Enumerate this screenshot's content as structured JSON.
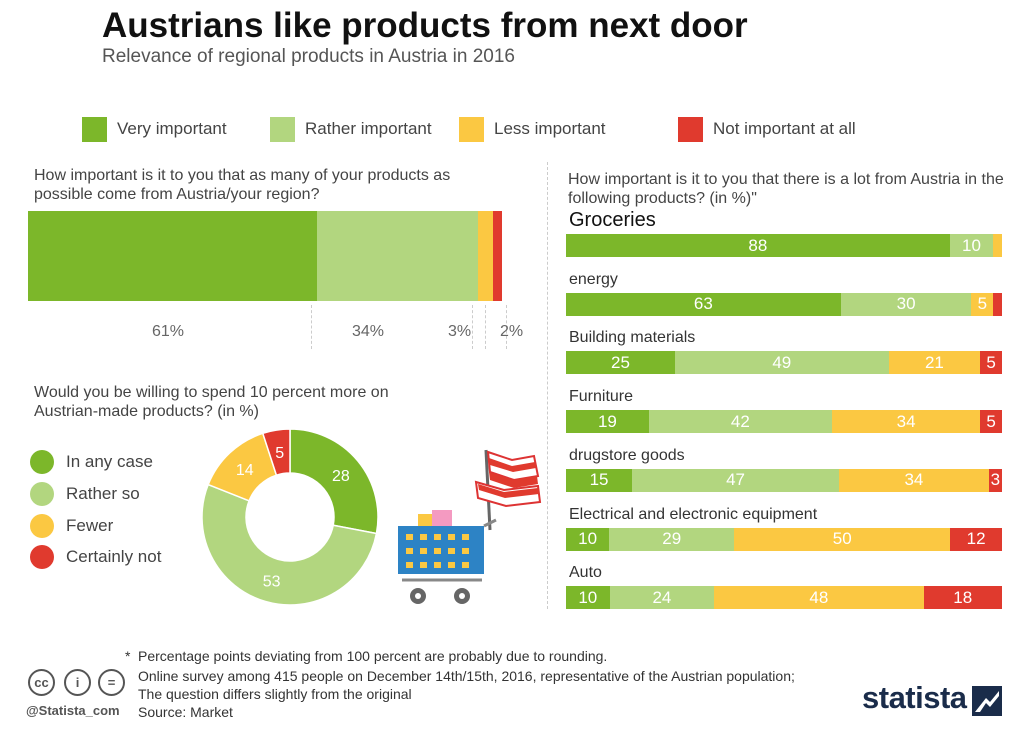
{
  "header": {
    "title": "Austrians like products from next door",
    "subtitle": "Relevance of regional products in Austria in 2016"
  },
  "colors": {
    "very": "#7cb72a",
    "rather": "#b2d67f",
    "less": "#fbc842",
    "not": "#e03a2e"
  },
  "legend": [
    "Very important",
    "Rather important",
    "Less important",
    "Not important at all"
  ],
  "chart_data": [
    {
      "type": "bar",
      "orientation": "horizontal-stacked",
      "title": "How important is it to you that as many of your products as possible come from Austria/your region?",
      "categories": [
        ""
      ],
      "series": [
        {
          "name": "Very important",
          "values": [
            61
          ]
        },
        {
          "name": "Rather important",
          "values": [
            34
          ]
        },
        {
          "name": "Less important",
          "values": [
            3
          ]
        },
        {
          "name": "Not important at all",
          "values": [
            2
          ]
        }
      ],
      "labels": [
        "61%",
        "34%",
        "3%",
        "2%"
      ]
    },
    {
      "type": "pie",
      "title": "Would you be willing to spend 10 percent more on Austrian-made products? (in %)",
      "categories": [
        "In any case",
        "Rather so",
        "Fewer",
        "Certainly not"
      ],
      "values": [
        28,
        53,
        14,
        5
      ]
    },
    {
      "type": "bar",
      "orientation": "horizontal-stacked",
      "title": "How important is it to you that there is a lot from Austria in the following products? (in %)\"",
      "categories": [
        "Groceries",
        "energy",
        "Building materials",
        "Furniture",
        "drugstore goods",
        "Electrical and electronic equipment",
        "Auto"
      ],
      "series": [
        {
          "name": "Very important",
          "values": [
            88,
            63,
            25,
            19,
            15,
            10,
            10
          ]
        },
        {
          "name": "Rather important",
          "values": [
            10,
            30,
            49,
            42,
            47,
            29,
            24
          ]
        },
        {
          "name": "Less important",
          "values": [
            2,
            5,
            21,
            34,
            34,
            50,
            48
          ]
        },
        {
          "name": "Not important at all",
          "values": [
            0,
            2,
            5,
            5,
            3,
            12,
            18
          ]
        }
      ]
    }
  ],
  "donut_labels": [
    "28",
    "53",
    "14",
    "5"
  ],
  "right_labels": [
    [
      "88",
      "10",
      "",
      ""
    ],
    [
      "63",
      "30",
      "5",
      ""
    ],
    [
      "25",
      "49",
      "21",
      "5"
    ],
    [
      "19",
      "42",
      "34",
      "5"
    ],
    [
      "15",
      "47",
      "34",
      "3"
    ],
    [
      "10",
      "29",
      "50",
      "12"
    ],
    [
      "10",
      "24",
      "48",
      "18"
    ]
  ],
  "footer": {
    "note_mark": "*",
    "note": "Percentage points deviating from 100 percent are probably due to rounding.",
    "survey1": "Online survey among 415 people on December 14th/15th, 2016, representative of the Austrian population;",
    "survey2": "The question differs slightly from the original",
    "source": "Source: Market",
    "credit": "@Statista_com",
    "brand": "statista",
    "cc_icons": [
      "cc",
      "i",
      "="
    ]
  }
}
